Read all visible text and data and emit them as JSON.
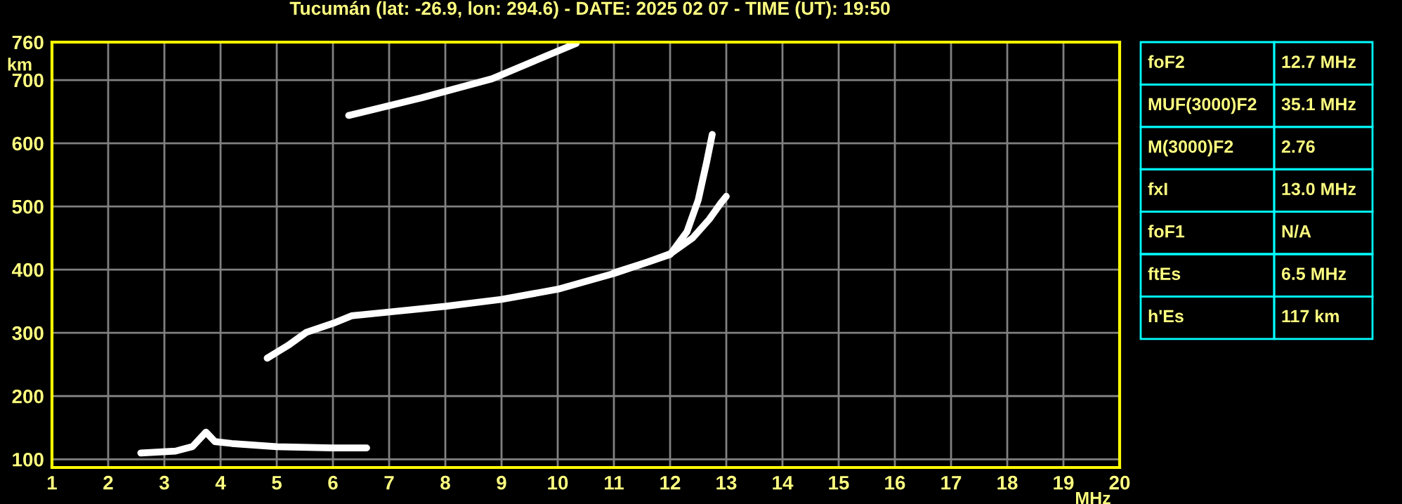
{
  "chart_data": [
    {
      "type": "line",
      "title": "Tucumán (lat: -26.9, lon: 294.6) - DATE: 2025 02 07 - TIME (UT): 19:50",
      "xlabel": "MHz",
      "ylabel": "km",
      "xlim": [
        1,
        20
      ],
      "ylim": [
        87,
        760
      ],
      "xticks": [
        1,
        2,
        3,
        4,
        5,
        6,
        7,
        8,
        9,
        10,
        11,
        12,
        13,
        14,
        15,
        16,
        17,
        18,
        19,
        20
      ],
      "yticks": [
        100,
        200,
        300,
        400,
        500,
        600,
        700,
        760
      ],
      "grid": true,
      "marker": "none",
      "line_style": "solid",
      "series": [
        {
          "color": "#ffffff",
          "x": [
            2.58,
            3.2,
            3.5,
            3.74,
            3.9,
            4.2,
            5.0,
            6.0,
            6.6
          ],
          "values": [
            110,
            113,
            120,
            143,
            128,
            125,
            120,
            118,
            118
          ]
        },
        {
          "color": "#ffffff",
          "x": [
            4.83,
            5.2,
            5.53,
            6.0,
            6.33,
            7.0,
            8.0,
            9.0,
            10.0,
            11.0,
            12.0,
            12.3,
            12.5,
            12.65,
            12.75
          ],
          "values": [
            260,
            280,
            301,
            315,
            327,
            333,
            342,
            353,
            369,
            394,
            424,
            460,
            510,
            570,
            614
          ]
        },
        {
          "color": "#ffffff",
          "x": [
            11.0,
            11.6,
            12.0,
            12.4,
            12.7,
            12.9,
            13.0
          ],
          "values": [
            395,
            412,
            425,
            450,
            480,
            505,
            516
          ]
        },
        {
          "color": "#ffffff",
          "x": [
            6.28,
            7.58,
            8.83,
            10.33
          ],
          "values": [
            644,
            672,
            702,
            758
          ]
        }
      ]
    },
    {
      "type": "other",
      "categories": [
        "foF2",
        "MUF(3000)F2",
        "M(3000)F2",
        "fxI",
        "foF1",
        "ftEs",
        "h'Es"
      ],
      "value_labels": [
        "12.7 MHz",
        "35.1 MHz",
        "2.76",
        "13.0 MHz",
        "N/A",
        "6.5 MHz",
        "117 km"
      ]
    }
  ]
}
